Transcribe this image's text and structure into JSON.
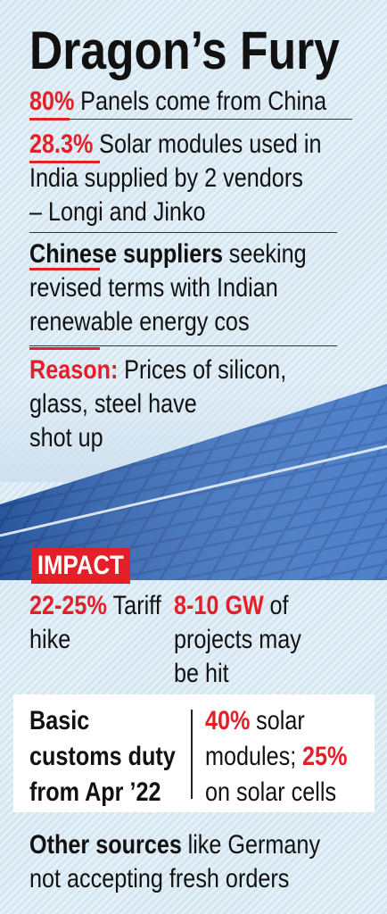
{
  "title": "Dragon’s Fury",
  "facts": [
    {
      "highlight": "80%",
      "lines": [
        "Panels come from China"
      ]
    },
    {
      "highlight": "28.3%",
      "lines": [
        "Solar modules used in",
        "India supplied by 2 vendors",
        "– Longi and Jinko"
      ]
    },
    {
      "highlight": "Chinese suppliers",
      "lines": [
        "seeking",
        "revised terms with Indian",
        "renewable energy cos"
      ]
    },
    {
      "highlight": "Reason:",
      "lines": [
        "Prices of silicon,",
        "glass, steel have",
        "shot up"
      ]
    }
  ],
  "impact": {
    "label": "IMPACT",
    "items": [
      {
        "highlight": "22-25%",
        "lines": [
          "Tariff",
          "hike"
        ]
      },
      {
        "highlight": "8-10 GW",
        "lines": [
          "of",
          "projects may",
          "be hit"
        ]
      }
    ]
  },
  "customs": {
    "lines": [
      "Basic",
      "customs duty",
      "from Apr ’22"
    ],
    "detail": [
      [
        {
          "t": "40%",
          "em": true
        },
        {
          "t": "solar"
        }
      ],
      [
        {
          "t": "modules;"
        },
        {
          "t": "25%",
          "em": true
        }
      ],
      [
        {
          "t": "on solar cells"
        }
      ]
    ]
  },
  "footer": {
    "highlight": "Other sources",
    "lines": [
      "like Germany",
      "not accepting fresh orders"
    ]
  }
}
